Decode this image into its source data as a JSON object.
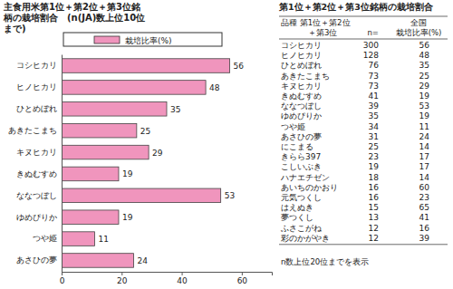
{
  "chart_data": {
    "type": "bar",
    "orientation": "horizontal",
    "title": "主食用米第1位＋第2位＋第3位銘柄の栽培割合　(n(JA)数上位10位まで)",
    "categories": [
      "コシヒカリ",
      "ヒノヒカリ",
      "ひとめぼれ",
      "あきたこまち",
      "キヌヒカリ",
      "きぬむすめ",
      "ななつぼし",
      "ゆめぴりか",
      "つや姫",
      "あさひの夢"
    ],
    "series": [
      {
        "name": "栽培比率(%)",
        "color": "#f095bd",
        "values": [
          56,
          48,
          35,
          25,
          29,
          19,
          53,
          19,
          11,
          24
        ]
      }
    ],
    "xlim": [
      0,
      70
    ],
    "xticks": [
      0,
      20,
      40,
      60
    ],
    "grid": false,
    "legend": "top",
    "data_labels": true
  },
  "table": {
    "title": "第1位＋第2位＋第3位銘柄の栽培割合",
    "header": [
      [
        "品種 第1位＋第2位",
        "＋第3位"
      ],
      [
        "n="
      ],
      [
        "全国",
        "栽培比率(%)"
      ]
    ],
    "rows": [
      [
        "コシヒカリ",
        300,
        56
      ],
      [
        "ヒノヒカリ",
        128,
        48
      ],
      [
        "ひとめぼれ",
        76,
        35
      ],
      [
        "あきたこまち",
        73,
        25
      ],
      [
        "キヌヒカリ",
        73,
        29
      ],
      [
        "きぬむすめ",
        41,
        19
      ],
      [
        "ななつぼし",
        39,
        53
      ],
      [
        "ゆめぴりか",
        35,
        19
      ],
      [
        "つや姫",
        34,
        11
      ],
      [
        "あさひの夢",
        31,
        24
      ],
      [
        "にこまる",
        25,
        14
      ],
      [
        "きらら397",
        23,
        17
      ],
      [
        "こしいぶき",
        19,
        17
      ],
      [
        "ハナエチゼン",
        18,
        14
      ],
      [
        "あいちのかおり",
        16,
        60
      ],
      [
        "元気つくし",
        16,
        23
      ],
      [
        "はえぬき",
        15,
        65
      ],
      [
        "夢つくし",
        13,
        41
      ],
      [
        "ふさこがね",
        12,
        16
      ],
      [
        "彩のかがやき",
        12,
        39
      ]
    ],
    "footnote": "n数上位20位までを表示"
  }
}
